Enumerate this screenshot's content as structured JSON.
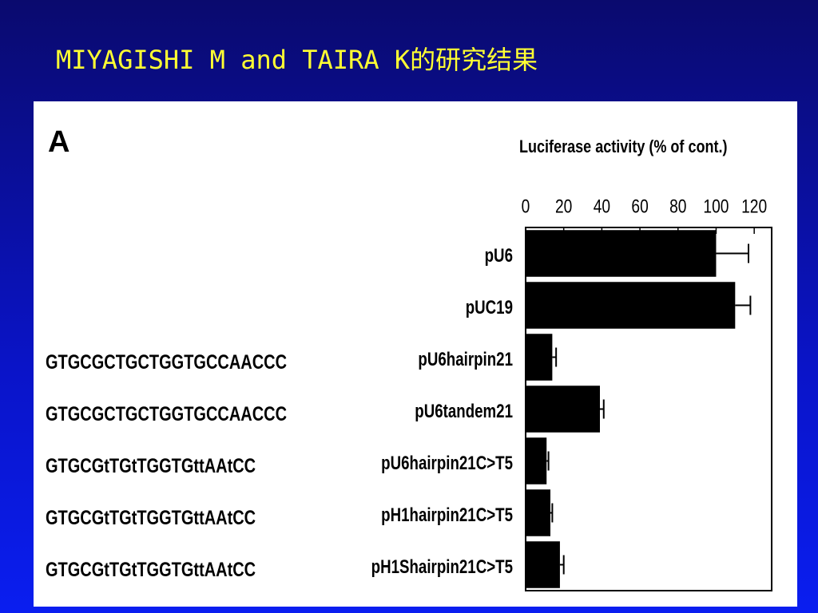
{
  "slide_title": "MIYAGISHI M and TAIRA K的研究结果",
  "panel_label": "A",
  "sequences": [
    null,
    null,
    "GTGCGCTGCTGGTGCCAACCC",
    "GTGCGCTGCTGGTGCCAACCC",
    "GTGCGtTGtTGGTGttAAtCC",
    "GTGCGtTGtTGGTGttAAtCC",
    "GTGCGtTGtTGGTGttAAtCC"
  ],
  "chart_data": {
    "type": "hbar",
    "x_label": "Luciferase activity (% of cont.)",
    "categories": [
      "pU6",
      "pUC19",
      "pU6hairpin21",
      "pU6tandem21",
      "pU6hairpin21C>T5",
      "pH1hairpin21C>T5",
      "pH1Shairpin21C>T5"
    ],
    "values": [
      100,
      110,
      14,
      39,
      11,
      13,
      18
    ],
    "errors": [
      17,
      8,
      2,
      2,
      1,
      1,
      2
    ],
    "color": "#000000",
    "xlim": [
      0,
      130
    ],
    "xticks": [
      0,
      20,
      40,
      60,
      80,
      100,
      120
    ]
  }
}
